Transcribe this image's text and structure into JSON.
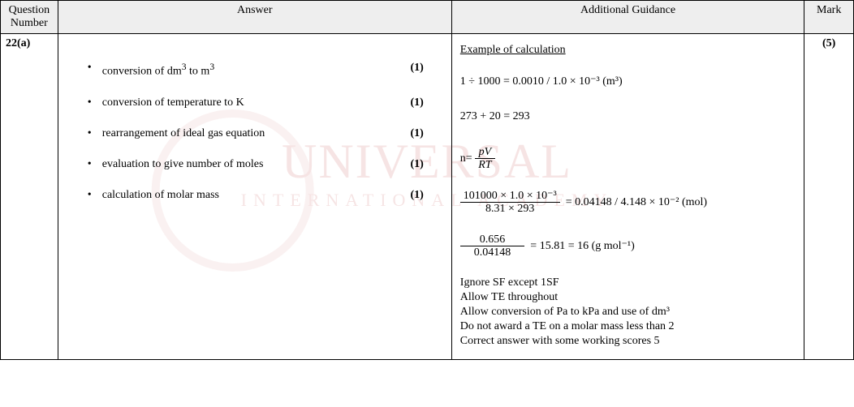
{
  "watermark": {
    "line1": "UNIVERSAL",
    "line2": "INTERNATIONAL ACADEMY"
  },
  "headers": {
    "question_number": "Question Number",
    "answer": "Answer",
    "guidance": "Additional Guidance",
    "mark": "Mark"
  },
  "row": {
    "qn": "22(a)",
    "total_mark": "(5)",
    "answer_points": [
      {
        "text_html": "conversion of dm<sup>3</sup> to m<sup>3</sup>",
        "pts": "(1)"
      },
      {
        "text_html": "conversion of temperature to K",
        "pts": "(1)"
      },
      {
        "text_html": "rearrangement of ideal gas equation",
        "pts": "(1)"
      },
      {
        "text_html": "evaluation to give number of moles",
        "pts": "(1)"
      },
      {
        "text_html": "calculation of molar mass",
        "pts": "(1)"
      }
    ],
    "guidance": {
      "title": "Example of calculation",
      "calc1": "1 ÷ 1000 = 0.0010 / 1.0 × 10⁻³ (m³)",
      "calc2": "273 + 20 = 293",
      "calc3": {
        "lhs": "n=",
        "num_html": "<span class='ital'>pV</span>",
        "den_html": "<span class='ital'>RT</span>",
        "rhs": ""
      },
      "calc4": {
        "num": "101000 × 1.0 × 10⁻³",
        "den": "8.31 × 293",
        "rhs": "= 0.04148 / 4.148 × 10⁻² (mol)"
      },
      "calc5": {
        "num": "0.656",
        "den": "0.04148",
        "rhs": "= 15.81 = 16 (g mol⁻¹)"
      },
      "notes": [
        "Ignore SF except 1SF",
        "Allow TE throughout",
        "Allow conversion of Pa to kPa and use of dm³",
        "Do not award a TE on a molar mass less than 2",
        "Correct answer with some working scores 5"
      ]
    }
  }
}
